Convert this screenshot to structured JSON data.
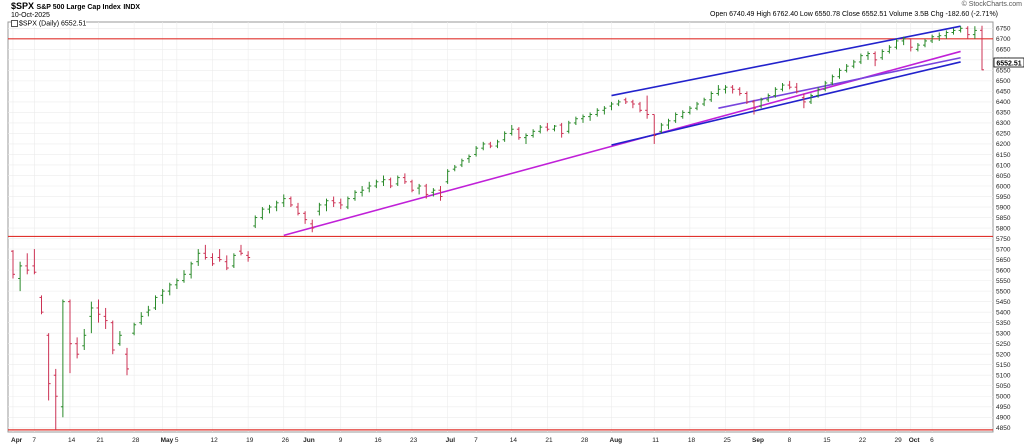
{
  "header": {
    "symbol": "$SPX",
    "name": "S&P 500 Large Cap Index",
    "exchange": "INDX",
    "date": "10-Oct-2025",
    "legend_label": "$SPX (Daily) 6552.51",
    "watermark": "© StockCharts.com",
    "ohlc": "Open 6740.49  High 6762.40  Low 6550.78  Close 6552.51  Volume 3.5B  Chg -182.60 (-2.71%)",
    "last_price": "6552.51"
  },
  "chart_data": {
    "type": "ohlc",
    "ylim": [
      4830,
      6780
    ],
    "yticks": [
      4850,
      4900,
      4950,
      5000,
      5050,
      5100,
      5150,
      5200,
      5250,
      5300,
      5350,
      5400,
      5450,
      5500,
      5550,
      5600,
      5650,
      5700,
      5750,
      5800,
      5850,
      5900,
      5950,
      6000,
      6050,
      6100,
      6150,
      6200,
      6250,
      6300,
      6350,
      6400,
      6450,
      6500,
      6550,
      6600,
      6650,
      6700,
      6750
    ],
    "xticks": [
      {
        "label": "Apr",
        "i": 0,
        "bold": true
      },
      {
        "label": "7",
        "i": 3
      },
      {
        "label": "14",
        "i": 8
      },
      {
        "label": "21",
        "i": 12
      },
      {
        "label": "28",
        "i": 17
      },
      {
        "label": "May",
        "i": 21,
        "bold": true
      },
      {
        "label": "5",
        "i": 23
      },
      {
        "label": "12",
        "i": 28
      },
      {
        "label": "19",
        "i": 33
      },
      {
        "label": "26",
        "i": 38
      },
      {
        "label": "Jun",
        "i": 41,
        "bold": true
      },
      {
        "label": "9",
        "i": 46
      },
      {
        "label": "16",
        "i": 51
      },
      {
        "label": "23",
        "i": 56
      },
      {
        "label": "Jul",
        "i": 61,
        "bold": true
      },
      {
        "label": "7",
        "i": 65
      },
      {
        "label": "14",
        "i": 70
      },
      {
        "label": "21",
        "i": 75
      },
      {
        "label": "28",
        "i": 80
      },
      {
        "label": "Aug",
        "i": 84,
        "bold": true
      },
      {
        "label": "11",
        "i": 90
      },
      {
        "label": "18",
        "i": 95
      },
      {
        "label": "25",
        "i": 100
      },
      {
        "label": "Sep",
        "i": 104,
        "bold": true
      },
      {
        "label": "8",
        "i": 109
      },
      {
        "label": "15",
        "i": 114
      },
      {
        "label": "22",
        "i": 119
      },
      {
        "label": "29",
        "i": 124
      },
      {
        "label": "Oct",
        "i": 126,
        "bold": true
      },
      {
        "label": "6",
        "i": 129
      }
    ],
    "bars": [
      {
        "o": 5690,
        "h": 5695,
        "l": 5560,
        "c": 5580
      },
      {
        "o": 5560,
        "h": 5640,
        "l": 5500,
        "c": 5620
      },
      {
        "o": 5620,
        "h": 5680,
        "l": 5580,
        "c": 5600
      },
      {
        "o": 5620,
        "h": 5700,
        "l": 5580,
        "c": 5590
      },
      {
        "o": 5470,
        "h": 5480,
        "l": 5390,
        "c": 5400
      },
      {
        "o": 5290,
        "h": 5300,
        "l": 4980,
        "c": 5060
      },
      {
        "o": 5100,
        "h": 5130,
        "l": 4840,
        "c": 5000
      },
      {
        "o": 4950,
        "h": 5460,
        "l": 4900,
        "c": 5450
      },
      {
        "o": 5450,
        "h": 5460,
        "l": 5110,
        "c": 5250
      },
      {
        "o": 5250,
        "h": 5280,
        "l": 5180,
        "c": 5200
      },
      {
        "o": 5240,
        "h": 5320,
        "l": 5220,
        "c": 5290
      },
      {
        "o": 5380,
        "h": 5450,
        "l": 5300,
        "c": 5420
      },
      {
        "o": 5420,
        "h": 5460,
        "l": 5350,
        "c": 5390
      },
      {
        "o": 5380,
        "h": 5420,
        "l": 5320,
        "c": 5360
      },
      {
        "o": 5350,
        "h": 5360,
        "l": 5200,
        "c": 5220
      },
      {
        "o": 5250,
        "h": 5310,
        "l": 5240,
        "c": 5290
      },
      {
        "o": 5200,
        "h": 5230,
        "l": 5100,
        "c": 5130
      },
      {
        "o": 5300,
        "h": 5350,
        "l": 5290,
        "c": 5340
      },
      {
        "o": 5350,
        "h": 5400,
        "l": 5340,
        "c": 5380
      },
      {
        "o": 5400,
        "h": 5430,
        "l": 5380,
        "c": 5410
      },
      {
        "o": 5420,
        "h": 5480,
        "l": 5410,
        "c": 5470
      },
      {
        "o": 5480,
        "h": 5510,
        "l": 5440,
        "c": 5500
      },
      {
        "o": 5500,
        "h": 5540,
        "l": 5480,
        "c": 5530
      },
      {
        "o": 5530,
        "h": 5560,
        "l": 5510,
        "c": 5550
      },
      {
        "o": 5550,
        "h": 5600,
        "l": 5540,
        "c": 5580
      },
      {
        "o": 5580,
        "h": 5640,
        "l": 5560,
        "c": 5630
      },
      {
        "o": 5640,
        "h": 5700,
        "l": 5620,
        "c": 5680
      },
      {
        "o": 5680,
        "h": 5720,
        "l": 5650,
        "c": 5660
      },
      {
        "o": 5660,
        "h": 5680,
        "l": 5620,
        "c": 5630
      },
      {
        "o": 5660,
        "h": 5700,
        "l": 5640,
        "c": 5650
      },
      {
        "o": 5640,
        "h": 5670,
        "l": 5600,
        "c": 5610
      },
      {
        "o": 5620,
        "h": 5680,
        "l": 5610,
        "c": 5670
      },
      {
        "o": 5690,
        "h": 5720,
        "l": 5670,
        "c": 5680
      },
      {
        "o": 5670,
        "h": 5690,
        "l": 5640,
        "c": 5660
      },
      {
        "o": 5810,
        "h": 5860,
        "l": 5800,
        "c": 5850
      },
      {
        "o": 5850,
        "h": 5900,
        "l": 5840,
        "c": 5890
      },
      {
        "o": 5890,
        "h": 5910,
        "l": 5870,
        "c": 5900
      },
      {
        "o": 5900,
        "h": 5930,
        "l": 5880,
        "c": 5920
      },
      {
        "o": 5920,
        "h": 5960,
        "l": 5900,
        "c": 5940
      },
      {
        "o": 5940,
        "h": 5950,
        "l": 5900,
        "c": 5910
      },
      {
        "o": 5900,
        "h": 5920,
        "l": 5860,
        "c": 5870
      },
      {
        "o": 5870,
        "h": 5880,
        "l": 5820,
        "c": 5840
      },
      {
        "o": 5820,
        "h": 5840,
        "l": 5780,
        "c": 5800
      },
      {
        "o": 5880,
        "h": 5920,
        "l": 5860,
        "c": 5910
      },
      {
        "o": 5910,
        "h": 5940,
        "l": 5880,
        "c": 5930
      },
      {
        "o": 5930,
        "h": 5950,
        "l": 5900,
        "c": 5920
      },
      {
        "o": 5920,
        "h": 5940,
        "l": 5890,
        "c": 5910
      },
      {
        "o": 5900,
        "h": 5950,
        "l": 5890,
        "c": 5940
      },
      {
        "o": 5940,
        "h": 5980,
        "l": 5930,
        "c": 5970
      },
      {
        "o": 5970,
        "h": 6000,
        "l": 5950,
        "c": 5980
      },
      {
        "o": 5990,
        "h": 6020,
        "l": 5970,
        "c": 6000
      },
      {
        "o": 6000,
        "h": 6030,
        "l": 5990,
        "c": 6020
      },
      {
        "o": 6020,
        "h": 6050,
        "l": 6000,
        "c": 6030
      },
      {
        "o": 6030,
        "h": 6040,
        "l": 5990,
        "c": 6000
      },
      {
        "o": 6010,
        "h": 6050,
        "l": 6000,
        "c": 6040
      },
      {
        "o": 6040,
        "h": 6060,
        "l": 6010,
        "c": 6020
      },
      {
        "o": 6020,
        "h": 6030,
        "l": 5970,
        "c": 5980
      },
      {
        "o": 5990,
        "h": 6010,
        "l": 5960,
        "c": 6000
      },
      {
        "o": 6000,
        "h": 6010,
        "l": 5940,
        "c": 5960
      },
      {
        "o": 5970,
        "h": 5990,
        "l": 5950,
        "c": 5980
      },
      {
        "o": 5980,
        "h": 6000,
        "l": 5930,
        "c": 5950
      },
      {
        "o": 6020,
        "h": 6080,
        "l": 6010,
        "c": 6070
      },
      {
        "o": 6080,
        "h": 6100,
        "l": 6070,
        "c": 6090
      },
      {
        "o": 6100,
        "h": 6130,
        "l": 6090,
        "c": 6120
      },
      {
        "o": 6130,
        "h": 6150,
        "l": 6110,
        "c": 6140
      },
      {
        "o": 6150,
        "h": 6190,
        "l": 6140,
        "c": 6180
      },
      {
        "o": 6180,
        "h": 6210,
        "l": 6170,
        "c": 6200
      },
      {
        "o": 6200,
        "h": 6210,
        "l": 6180,
        "c": 6190
      },
      {
        "o": 6190,
        "h": 6220,
        "l": 6180,
        "c": 6210
      },
      {
        "o": 6220,
        "h": 6260,
        "l": 6210,
        "c": 6250
      },
      {
        "o": 6250,
        "h": 6290,
        "l": 6240,
        "c": 6270
      },
      {
        "o": 6270,
        "h": 6280,
        "l": 6220,
        "c": 6230
      },
      {
        "o": 6230,
        "h": 6250,
        "l": 6200,
        "c": 6240
      },
      {
        "o": 6240,
        "h": 6270,
        "l": 6230,
        "c": 6260
      },
      {
        "o": 6260,
        "h": 6290,
        "l": 6250,
        "c": 6280
      },
      {
        "o": 6280,
        "h": 6300,
        "l": 6260,
        "c": 6270
      },
      {
        "o": 6270,
        "h": 6290,
        "l": 6260,
        "c": 6285
      },
      {
        "o": 6290,
        "h": 6300,
        "l": 6230,
        "c": 6250
      },
      {
        "o": 6260,
        "h": 6310,
        "l": 6250,
        "c": 6300
      },
      {
        "o": 6300,
        "h": 6330,
        "l": 6290,
        "c": 6320
      },
      {
        "o": 6320,
        "h": 6340,
        "l": 6300,
        "c": 6330
      },
      {
        "o": 6330,
        "h": 6350,
        "l": 6310,
        "c": 6340
      },
      {
        "o": 6340,
        "h": 6370,
        "l": 6330,
        "c": 6360
      },
      {
        "o": 6360,
        "h": 6380,
        "l": 6340,
        "c": 6370
      },
      {
        "o": 6380,
        "h": 6400,
        "l": 6360,
        "c": 6390
      },
      {
        "o": 6390,
        "h": 6410,
        "l": 6380,
        "c": 6400
      },
      {
        "o": 6410,
        "h": 6420,
        "l": 6390,
        "c": 6400
      },
      {
        "o": 6400,
        "h": 6410,
        "l": 6370,
        "c": 6390
      },
      {
        "o": 6390,
        "h": 6400,
        "l": 6350,
        "c": 6360
      },
      {
        "o": 6360,
        "h": 6430,
        "l": 6320,
        "c": 6340
      },
      {
        "o": 6340,
        "h": 6340,
        "l": 6200,
        "c": 6240
      },
      {
        "o": 6260,
        "h": 6300,
        "l": 6250,
        "c": 6290
      },
      {
        "o": 6290,
        "h": 6320,
        "l": 6270,
        "c": 6310
      },
      {
        "o": 6310,
        "h": 6350,
        "l": 6300,
        "c": 6340
      },
      {
        "o": 6330,
        "h": 6360,
        "l": 6320,
        "c": 6350
      },
      {
        "o": 6350,
        "h": 6380,
        "l": 6340,
        "c": 6370
      },
      {
        "o": 6370,
        "h": 6400,
        "l": 6360,
        "c": 6390
      },
      {
        "o": 6390,
        "h": 6420,
        "l": 6380,
        "c": 6410
      },
      {
        "o": 6410,
        "h": 6450,
        "l": 6400,
        "c": 6440
      },
      {
        "o": 6440,
        "h": 6480,
        "l": 6430,
        "c": 6460
      },
      {
        "o": 6460,
        "h": 6480,
        "l": 6440,
        "c": 6470
      },
      {
        "o": 6470,
        "h": 6480,
        "l": 6440,
        "c": 6460
      },
      {
        "o": 6460,
        "h": 6470,
        "l": 6430,
        "c": 6440
      },
      {
        "o": 6440,
        "h": 6450,
        "l": 6390,
        "c": 6400
      },
      {
        "o": 6400,
        "h": 6410,
        "l": 6340,
        "c": 6370
      },
      {
        "o": 6380,
        "h": 6420,
        "l": 6370,
        "c": 6410
      },
      {
        "o": 6410,
        "h": 6440,
        "l": 6400,
        "c": 6430
      },
      {
        "o": 6430,
        "h": 6470,
        "l": 6420,
        "c": 6460
      },
      {
        "o": 6460,
        "h": 6490,
        "l": 6450,
        "c": 6480
      },
      {
        "o": 6480,
        "h": 6500,
        "l": 6460,
        "c": 6470
      },
      {
        "o": 6470,
        "h": 6490,
        "l": 6440,
        "c": 6450
      },
      {
        "o": 6420,
        "h": 6440,
        "l": 6370,
        "c": 6400
      },
      {
        "o": 6400,
        "h": 6440,
        "l": 6390,
        "c": 6430
      },
      {
        "o": 6430,
        "h": 6470,
        "l": 6420,
        "c": 6460
      },
      {
        "o": 6460,
        "h": 6500,
        "l": 6450,
        "c": 6490
      },
      {
        "o": 6490,
        "h": 6530,
        "l": 6480,
        "c": 6520
      },
      {
        "o": 6520,
        "h": 6560,
        "l": 6510,
        "c": 6550
      },
      {
        "o": 6550,
        "h": 6580,
        "l": 6540,
        "c": 6570
      },
      {
        "o": 6570,
        "h": 6600,
        "l": 6560,
        "c": 6590
      },
      {
        "o": 6590,
        "h": 6630,
        "l": 6580,
        "c": 6620
      },
      {
        "o": 6620,
        "h": 6640,
        "l": 6600,
        "c": 6630
      },
      {
        "o": 6630,
        "h": 6640,
        "l": 6570,
        "c": 6600
      },
      {
        "o": 6610,
        "h": 6650,
        "l": 6600,
        "c": 6640
      },
      {
        "o": 6640,
        "h": 6670,
        "l": 6630,
        "c": 6660
      },
      {
        "o": 6660,
        "h": 6700,
        "l": 6650,
        "c": 6690
      },
      {
        "o": 6690,
        "h": 6710,
        "l": 6670,
        "c": 6700
      },
      {
        "o": 6700,
        "h": 6700,
        "l": 6640,
        "c": 6660
      },
      {
        "o": 6650,
        "h": 6680,
        "l": 6640,
        "c": 6670
      },
      {
        "o": 6670,
        "h": 6700,
        "l": 6660,
        "c": 6690
      },
      {
        "o": 6690,
        "h": 6720,
        "l": 6680,
        "c": 6710
      },
      {
        "o": 6710,
        "h": 6730,
        "l": 6690,
        "c": 6715
      },
      {
        "o": 6715,
        "h": 6740,
        "l": 6700,
        "c": 6730
      },
      {
        "o": 6730,
        "h": 6750,
        "l": 6720,
        "c": 6740
      },
      {
        "o": 6740,
        "h": 6760,
        "l": 6730,
        "c": 6750
      },
      {
        "o": 6750,
        "h": 6760,
        "l": 6700,
        "c": 6720
      },
      {
        "o": 6720,
        "h": 6760,
        "l": 6700,
        "c": 6740
      },
      {
        "o": 6740.49,
        "h": 6762.4,
        "l": 6550.78,
        "c": 6552.51
      }
    ],
    "overlays": [
      {
        "kind": "hline",
        "price": 6700,
        "color": "#e0332e"
      },
      {
        "kind": "hline",
        "price": 5760,
        "color": "#e0332e"
      },
      {
        "kind": "hline",
        "price": 4840,
        "color": "#e0332e"
      },
      {
        "kind": "trend",
        "from": [
          38,
          5765
        ],
        "to": [
          133,
          6640
        ],
        "color": "#c020d8"
      },
      {
        "kind": "trend",
        "from": [
          84,
          6195
        ],
        "to": [
          133,
          6590
        ],
        "color": "#2222cc"
      },
      {
        "kind": "trend",
        "from": [
          84,
          6430
        ],
        "to": [
          133,
          6760
        ],
        "color": "#2222cc"
      },
      {
        "kind": "trend",
        "from": [
          99,
          6370
        ],
        "to": [
          133,
          6610
        ],
        "color": "#7744dd"
      }
    ],
    "up_color": "#2a8a2a",
    "down_color": "#cc3355",
    "grid": true,
    "legend_position": "top-left"
  }
}
